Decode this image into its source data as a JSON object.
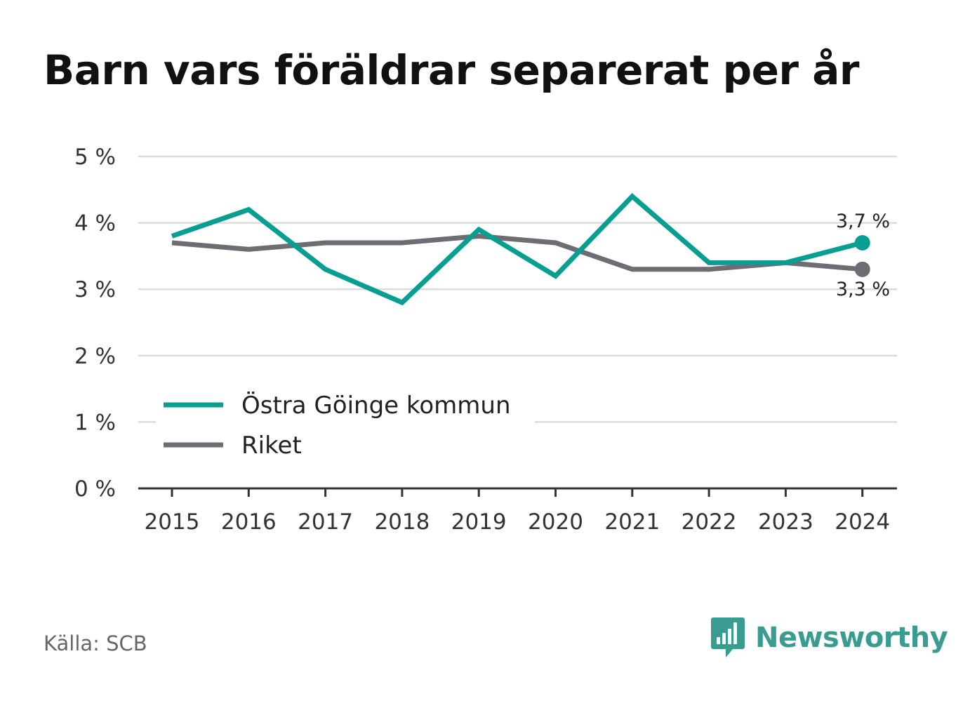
{
  "title": "Barn vars föräldrar separerat per år",
  "source": "Källa: SCB",
  "brand": {
    "name": "Newsworthy",
    "icon": "bar-chart-speech-bubble-icon",
    "color": "#3a9c90"
  },
  "chart_data": {
    "type": "line",
    "x": [
      "2015",
      "2016",
      "2017",
      "2018",
      "2019",
      "2020",
      "2021",
      "2022",
      "2023",
      "2024"
    ],
    "y_ticks": [
      0,
      1,
      2,
      3,
      4,
      5
    ],
    "y_tick_labels": [
      "0 %",
      "1 %",
      "2 %",
      "3 %",
      "4 %",
      "5 %"
    ],
    "ylim": [
      0,
      5
    ],
    "grid": true,
    "legend_position": "bottom-left",
    "series": [
      {
        "name": "Östra Göinge kommun",
        "color": "#089e91",
        "values": [
          3.8,
          4.2,
          3.3,
          2.8,
          3.9,
          3.2,
          4.4,
          3.4,
          3.4,
          3.7
        ],
        "end_label": "3,7 %"
      },
      {
        "name": "Riket",
        "color": "#6e6d73",
        "values": [
          3.7,
          3.6,
          3.7,
          3.7,
          3.8,
          3.7,
          3.3,
          3.3,
          3.4,
          3.3
        ],
        "end_label": "3,3 %"
      }
    ]
  }
}
